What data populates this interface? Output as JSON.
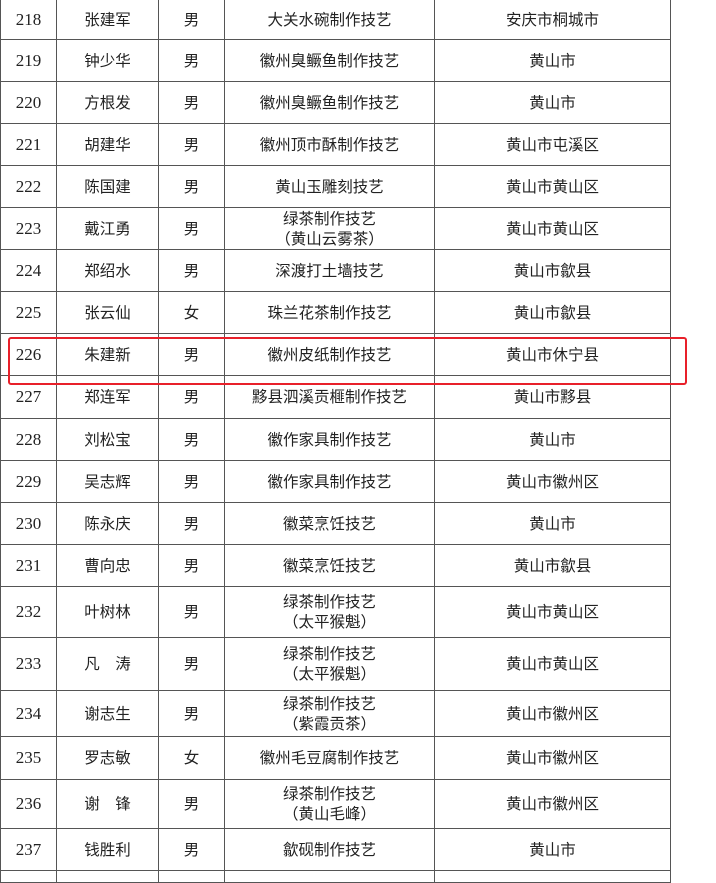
{
  "rows": [
    {
      "no": "218",
      "name": "张建军",
      "gender": "男",
      "skill": [
        "大关水碗制作技艺"
      ],
      "region": "安庆市桐城市"
    },
    {
      "no": "219",
      "name": "钟少华",
      "gender": "男",
      "skill": [
        "徽州臭鳜鱼制作技艺"
      ],
      "region": "黄山市"
    },
    {
      "no": "220",
      "name": "方根发",
      "gender": "男",
      "skill": [
        "徽州臭鳜鱼制作技艺"
      ],
      "region": "黄山市"
    },
    {
      "no": "221",
      "name": "胡建华",
      "gender": "男",
      "skill": [
        "徽州顶市酥制作技艺"
      ],
      "region": "黄山市屯溪区"
    },
    {
      "no": "222",
      "name": "陈国建",
      "gender": "男",
      "skill": [
        "黄山玉雕刻技艺"
      ],
      "region": "黄山市黄山区"
    },
    {
      "no": "223",
      "name": "戴江勇",
      "gender": "男",
      "skill": [
        "绿茶制作技艺",
        "（黄山云雾茶）"
      ],
      "region": "黄山市黄山区"
    },
    {
      "no": "224",
      "name": "郑绍水",
      "gender": "男",
      "skill": [
        "深渡打土墙技艺"
      ],
      "region": "黄山市歙县"
    },
    {
      "no": "225",
      "name": "张云仙",
      "gender": "女",
      "skill": [
        "珠兰花茶制作技艺"
      ],
      "region": "黄山市歙县"
    },
    {
      "no": "226",
      "name": "朱建新",
      "gender": "男",
      "skill": [
        "徽州皮纸制作技艺"
      ],
      "region": "黄山市休宁县"
    },
    {
      "no": "227",
      "name": "郑连军",
      "gender": "男",
      "skill": [
        "黟县泗溪贡榧制作技艺"
      ],
      "region": "黄山市黟县"
    },
    {
      "no": "228",
      "name": "刘松宝",
      "gender": "男",
      "skill": [
        "徽作家具制作技艺"
      ],
      "region": "黄山市"
    },
    {
      "no": "229",
      "name": "吴志辉",
      "gender": "男",
      "skill": [
        "徽作家具制作技艺"
      ],
      "region": "黄山市徽州区"
    },
    {
      "no": "230",
      "name": "陈永庆",
      "gender": "男",
      "skill": [
        "徽菜烹饪技艺"
      ],
      "region": "黄山市"
    },
    {
      "no": "231",
      "name": "曹向忠",
      "gender": "男",
      "skill": [
        "徽菜烹饪技艺"
      ],
      "region": "黄山市歙县"
    },
    {
      "no": "232",
      "name": "叶树林",
      "gender": "男",
      "skill": [
        "绿茶制作技艺",
        "（太平猴魁）"
      ],
      "region": "黄山市黄山区"
    },
    {
      "no": "233",
      "name": "凡　涛",
      "gender": "男",
      "skill": [
        "绿茶制作技艺",
        "（太平猴魁）"
      ],
      "region": "黄山市黄山区"
    },
    {
      "no": "234",
      "name": "谢志生",
      "gender": "男",
      "skill": [
        "绿茶制作技艺",
        "（紫霞贡茶）"
      ],
      "region": "黄山市徽州区"
    },
    {
      "no": "235",
      "name": "罗志敏",
      "gender": "女",
      "skill": [
        "徽州毛豆腐制作技艺"
      ],
      "region": "黄山市徽州区"
    },
    {
      "no": "236",
      "name": "谢　锋",
      "gender": "男",
      "skill": [
        "绿茶制作技艺",
        "（黄山毛峰）"
      ],
      "region": "黄山市徽州区"
    },
    {
      "no": "237",
      "name": "钱胜利",
      "gender": "男",
      "skill": [
        "歙砚制作技艺"
      ],
      "region": "黄山市"
    }
  ],
  "highlight": {
    "row_no": "226",
    "color": "#e8202a"
  }
}
